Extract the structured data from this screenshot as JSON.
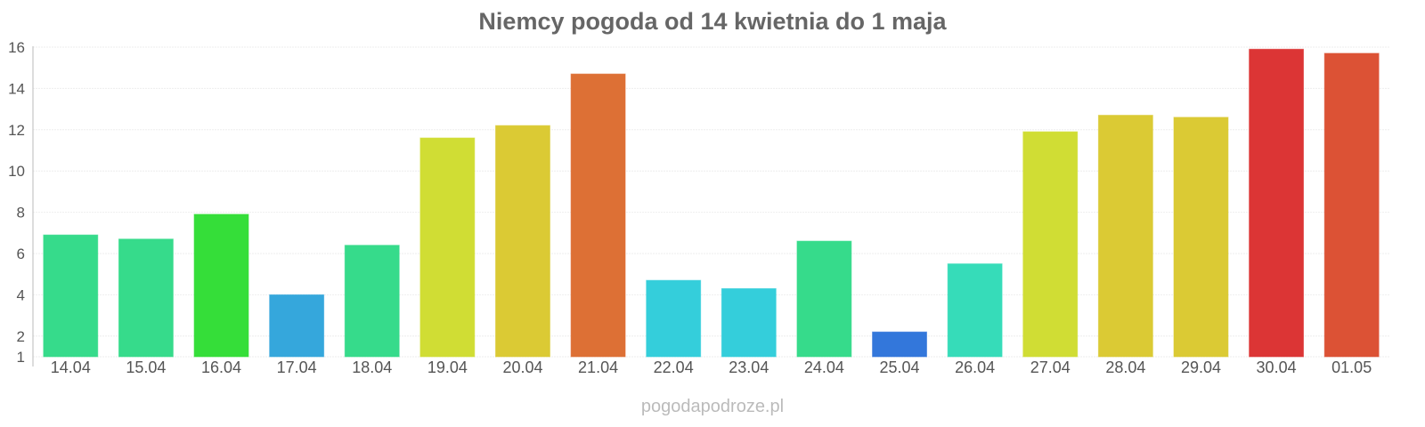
{
  "chart_data": {
    "type": "bar",
    "title": "Niemcy pogoda od 14 kwietnia do 1 maja",
    "xlabel": "",
    "ylabel": "",
    "categories": [
      "14.04",
      "15.04",
      "16.04",
      "17.04",
      "18.04",
      "19.04",
      "20.04",
      "21.04",
      "22.04",
      "23.04",
      "24.04",
      "25.04",
      "26.04",
      "27.04",
      "28.04",
      "29.04",
      "30.04",
      "01.05"
    ],
    "values": [
      6.9,
      6.7,
      7.9,
      4.0,
      6.4,
      11.6,
      12.2,
      14.7,
      4.7,
      4.3,
      6.6,
      2.2,
      5.5,
      11.9,
      12.7,
      12.6,
      15.9,
      15.7
    ],
    "colors": [
      "#36db8b",
      "#36db8b",
      "#35de39",
      "#35a7dc",
      "#36db8b",
      "#d0dd34",
      "#dbca34",
      "#dd7035",
      "#34cedb",
      "#34cedb",
      "#36db8b",
      "#3377db",
      "#36dcb9",
      "#d0dd34",
      "#dbca34",
      "#dbca34",
      "#dc3535",
      "#dc5235"
    ],
    "yticks": [
      1,
      2,
      4,
      6,
      8,
      10,
      12,
      14,
      16
    ],
    "ylim": [
      1,
      16
    ],
    "grid": true,
    "legend": "none"
  },
  "footer": "pogodapodroze.pl"
}
